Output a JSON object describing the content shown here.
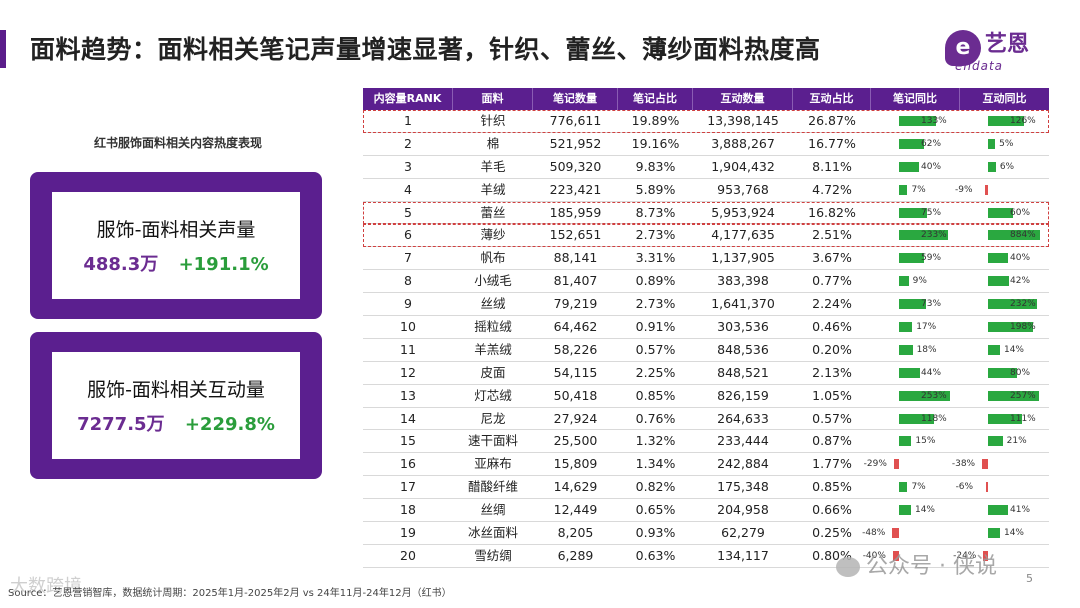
{
  "page_title": "面料趋势：面料相关笔记声量增速显著，针织、蕾丝、薄纱面料热度高",
  "logo": {
    "mark": "e",
    "cn": "艺恩",
    "en": "endata"
  },
  "left_heading": "红书服饰面料相关内容热度表现",
  "cards": [
    {
      "label": "服饰-面料相关声量",
      "volume": "488.3万",
      "growth": "+191.1%"
    },
    {
      "label": "服饰-面料相关互动量",
      "volume": "7277.5万",
      "growth": "+229.8%"
    }
  ],
  "table": {
    "headers": [
      "内容量RANK",
      "面料",
      "笔记数量",
      "笔记占比",
      "互动数量",
      "互动占比",
      "笔记同比",
      "互动同比"
    ],
    "rows": [
      {
        "rank": "1",
        "fabric": "针织",
        "notes": "776,611",
        "notes_share": "19.89%",
        "interactions": "13,398,145",
        "inter_share": "26.87%",
        "notes_yoy": 133,
        "inter_yoy": 126,
        "notes_yoy_label": "133%",
        "inter_yoy_label": "126%",
        "highlight": true
      },
      {
        "rank": "2",
        "fabric": "棉",
        "notes": "521,952",
        "notes_share": "19.16%",
        "interactions": "3,888,267",
        "inter_share": "16.77%",
        "notes_yoy": 62,
        "inter_yoy": 5,
        "notes_yoy_label": "62%",
        "inter_yoy_label": "5%",
        "highlight": false
      },
      {
        "rank": "3",
        "fabric": "羊毛",
        "notes": "509,320",
        "notes_share": "9.83%",
        "interactions": "1,904,432",
        "inter_share": "8.11%",
        "notes_yoy": 40,
        "inter_yoy": 6,
        "notes_yoy_label": "40%",
        "inter_yoy_label": "6%",
        "highlight": false
      },
      {
        "rank": "4",
        "fabric": "羊绒",
        "notes": "223,421",
        "notes_share": "5.89%",
        "interactions": "953,768",
        "inter_share": "4.72%",
        "notes_yoy": 7,
        "inter_yoy": -9,
        "notes_yoy_label": "7%",
        "inter_yoy_label": "-9%",
        "highlight": false
      },
      {
        "rank": "5",
        "fabric": "蕾丝",
        "notes": "185,959",
        "notes_share": "8.73%",
        "interactions": "5,953,924",
        "inter_share": "16.82%",
        "notes_yoy": 75,
        "inter_yoy": 60,
        "notes_yoy_label": "75%",
        "inter_yoy_label": "60%",
        "highlight": true
      },
      {
        "rank": "6",
        "fabric": "薄纱",
        "notes": "152,651",
        "notes_share": "2.73%",
        "interactions": "4,177,635",
        "inter_share": "2.51%",
        "notes_yoy": 233,
        "inter_yoy": 884,
        "notes_yoy_label": "233%",
        "inter_yoy_label": "884%",
        "highlight": true
      },
      {
        "rank": "7",
        "fabric": "帆布",
        "notes": "88,141",
        "notes_share": "3.31%",
        "interactions": "1,137,905",
        "inter_share": "3.67%",
        "notes_yoy": 59,
        "inter_yoy": 40,
        "notes_yoy_label": "59%",
        "inter_yoy_label": "40%",
        "highlight": false
      },
      {
        "rank": "8",
        "fabric": "小绒毛",
        "notes": "81,407",
        "notes_share": "0.89%",
        "interactions": "383,398",
        "inter_share": "0.77%",
        "notes_yoy": 9,
        "inter_yoy": 42,
        "notes_yoy_label": "9%",
        "inter_yoy_label": "42%",
        "highlight": false
      },
      {
        "rank": "9",
        "fabric": "丝绒",
        "notes": "79,219",
        "notes_share": "2.73%",
        "interactions": "1,641,370",
        "inter_share": "2.24%",
        "notes_yoy": 73,
        "inter_yoy": 232,
        "notes_yoy_label": "73%",
        "inter_yoy_label": "232%",
        "highlight": false
      },
      {
        "rank": "10",
        "fabric": "摇粒绒",
        "notes": "64,462",
        "notes_share": "0.91%",
        "interactions": "303,536",
        "inter_share": "0.46%",
        "notes_yoy": 17,
        "inter_yoy": 198,
        "notes_yoy_label": "17%",
        "inter_yoy_label": "198%",
        "highlight": false
      },
      {
        "rank": "11",
        "fabric": "羊羔绒",
        "notes": "58,226",
        "notes_share": "0.57%",
        "interactions": "848,536",
        "inter_share": "0.20%",
        "notes_yoy": 18,
        "inter_yoy": 14,
        "notes_yoy_label": "18%",
        "inter_yoy_label": "14%",
        "highlight": false
      },
      {
        "rank": "12",
        "fabric": "皮面",
        "notes": "54,115",
        "notes_share": "2.25%",
        "interactions": "848,521",
        "inter_share": "2.13%",
        "notes_yoy": 44,
        "inter_yoy": 80,
        "notes_yoy_label": "44%",
        "inter_yoy_label": "80%",
        "highlight": false
      },
      {
        "rank": "13",
        "fabric": "灯芯绒",
        "notes": "50,418",
        "notes_share": "0.85%",
        "interactions": "826,159",
        "inter_share": "1.05%",
        "notes_yoy": 253,
        "inter_yoy": 257,
        "notes_yoy_label": "253%",
        "inter_yoy_label": "257%",
        "highlight": false
      },
      {
        "rank": "14",
        "fabric": "尼龙",
        "notes": "27,924",
        "notes_share": "0.76%",
        "interactions": "264,633",
        "inter_share": "0.57%",
        "notes_yoy": 118,
        "inter_yoy": 111,
        "notes_yoy_label": "118%",
        "inter_yoy_label": "111%",
        "highlight": false
      },
      {
        "rank": "15",
        "fabric": "速干面料",
        "notes": "25,500",
        "notes_share": "1.32%",
        "interactions": "233,444",
        "inter_share": "0.87%",
        "notes_yoy": 15,
        "inter_yoy": 21,
        "notes_yoy_label": "15%",
        "inter_yoy_label": "21%",
        "highlight": false
      },
      {
        "rank": "16",
        "fabric": "亚麻布",
        "notes": "15,809",
        "notes_share": "1.34%",
        "interactions": "242,884",
        "inter_share": "1.77%",
        "notes_yoy": -29,
        "inter_yoy": -38,
        "notes_yoy_label": "-29%",
        "inter_yoy_label": "-38%",
        "highlight": false
      },
      {
        "rank": "17",
        "fabric": "醋酸纤维",
        "notes": "14,629",
        "notes_share": "0.82%",
        "interactions": "175,348",
        "inter_share": "0.85%",
        "notes_yoy": 7,
        "inter_yoy": -6,
        "notes_yoy_label": "7%",
        "inter_yoy_label": "-6%",
        "highlight": false
      },
      {
        "rank": "18",
        "fabric": "丝绸",
        "notes": "12,449",
        "notes_share": "0.65%",
        "interactions": "204,958",
        "inter_share": "0.66%",
        "notes_yoy": 14,
        "inter_yoy": 41,
        "notes_yoy_label": "14%",
        "inter_yoy_label": "41%",
        "highlight": false
      },
      {
        "rank": "19",
        "fabric": "冰丝面料",
        "notes": "8,205",
        "notes_share": "0.93%",
        "interactions": "62,279",
        "inter_share": "0.25%",
        "notes_yoy": -48,
        "inter_yoy": 14,
        "notes_yoy_label": "-48%",
        "inter_yoy_label": "14%",
        "highlight": false
      },
      {
        "rank": "20",
        "fabric": "雪纺绸",
        "notes": "6,289",
        "notes_share": "0.63%",
        "interactions": "134,117",
        "inter_share": "0.80%",
        "notes_yoy": -40,
        "inter_yoy": -24,
        "notes_yoy_label": "-40%",
        "inter_yoy_label": "-24%",
        "highlight": false
      }
    ]
  },
  "source": "Source：艺恩营销智库，数据统计周期：2025年1月-2025年2月 vs 24年11月-24年12月（红书）",
  "page_number": "5",
  "watermark": "公众号 · 侠说",
  "watermark_left": "大数跨境",
  "colors": {
    "brand": "#5b1f8f",
    "positive": "#2aa840",
    "negative": "#e05050",
    "growth_text": "#2a9d3b"
  }
}
